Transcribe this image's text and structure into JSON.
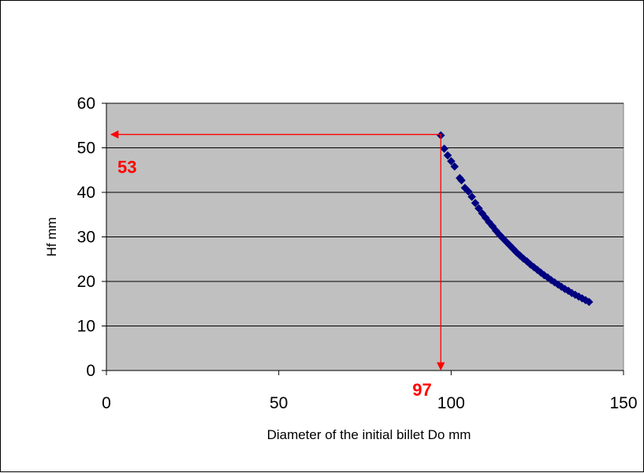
{
  "chart_data": {
    "type": "scatter",
    "title": "",
    "xlabel": "Diameter of the initial billet  Do mm",
    "ylabel": "Hf mm",
    "xlim": [
      0,
      150
    ],
    "ylim": [
      0,
      60
    ],
    "x_ticks": [
      "0",
      "50",
      "100",
      "150"
    ],
    "y_ticks": [
      "0",
      "10",
      "20",
      "30",
      "40",
      "50",
      "60"
    ],
    "grid": "horizontal",
    "legend": "none",
    "plot_background": "#c0c0c0",
    "series": [
      {
        "color": "#000080",
        "marker": "diamond",
        "x": [
          97,
          98,
          99,
          100,
          101,
          102.5,
          103,
          104,
          105,
          106,
          107,
          108,
          109,
          110,
          111,
          112,
          113,
          114,
          115,
          116,
          117,
          118,
          119,
          120,
          121,
          122,
          123,
          124,
          125,
          126,
          127,
          128,
          129,
          130,
          131,
          132,
          133,
          134,
          135,
          136,
          137,
          138,
          139,
          140
        ],
        "y": [
          52.8,
          49.8,
          48.3,
          47.0,
          45.8,
          43.2,
          42.7,
          41.0,
          40.2,
          39.0,
          37.6,
          36.4,
          35.3,
          34.3,
          33.3,
          32.4,
          31.4,
          30.5,
          29.7,
          28.9,
          28.1,
          27.3,
          26.5,
          25.8,
          25.1,
          24.5,
          23.8,
          23.2,
          22.6,
          22.0,
          21.4,
          20.9,
          20.3,
          19.8,
          19.3,
          18.8,
          18.3,
          17.9,
          17.4,
          17.0,
          16.6,
          16.2,
          15.8,
          15.4
        ]
      }
    ],
    "annotations": {
      "color": "#ff0000",
      "vertical": {
        "x": 97,
        "label": "97"
      },
      "horizontal": {
        "y": 53,
        "label": "53"
      }
    }
  }
}
